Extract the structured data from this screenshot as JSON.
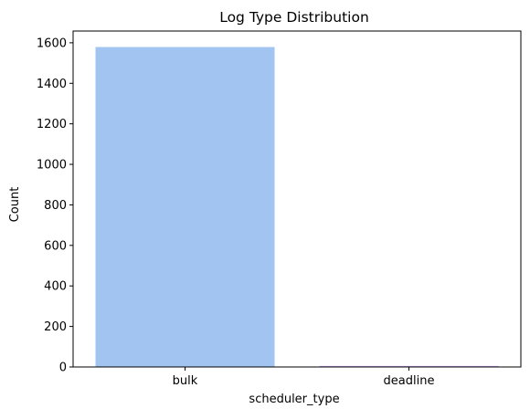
{
  "chart_data": {
    "type": "bar",
    "title": "Log Type Distribution",
    "xlabel": "scheduler_type",
    "ylabel": "Count",
    "categories": [
      "bulk",
      "deadline"
    ],
    "values": [
      1579,
      5
    ],
    "ylim": [
      0,
      1658
    ],
    "yticks": [
      0,
      200,
      400,
      600,
      800,
      1000,
      1200,
      1400,
      1600
    ],
    "bar_colors": [
      "#a1c4f0",
      "#c7a5f0"
    ],
    "grid": false,
    "legend": "none"
  }
}
